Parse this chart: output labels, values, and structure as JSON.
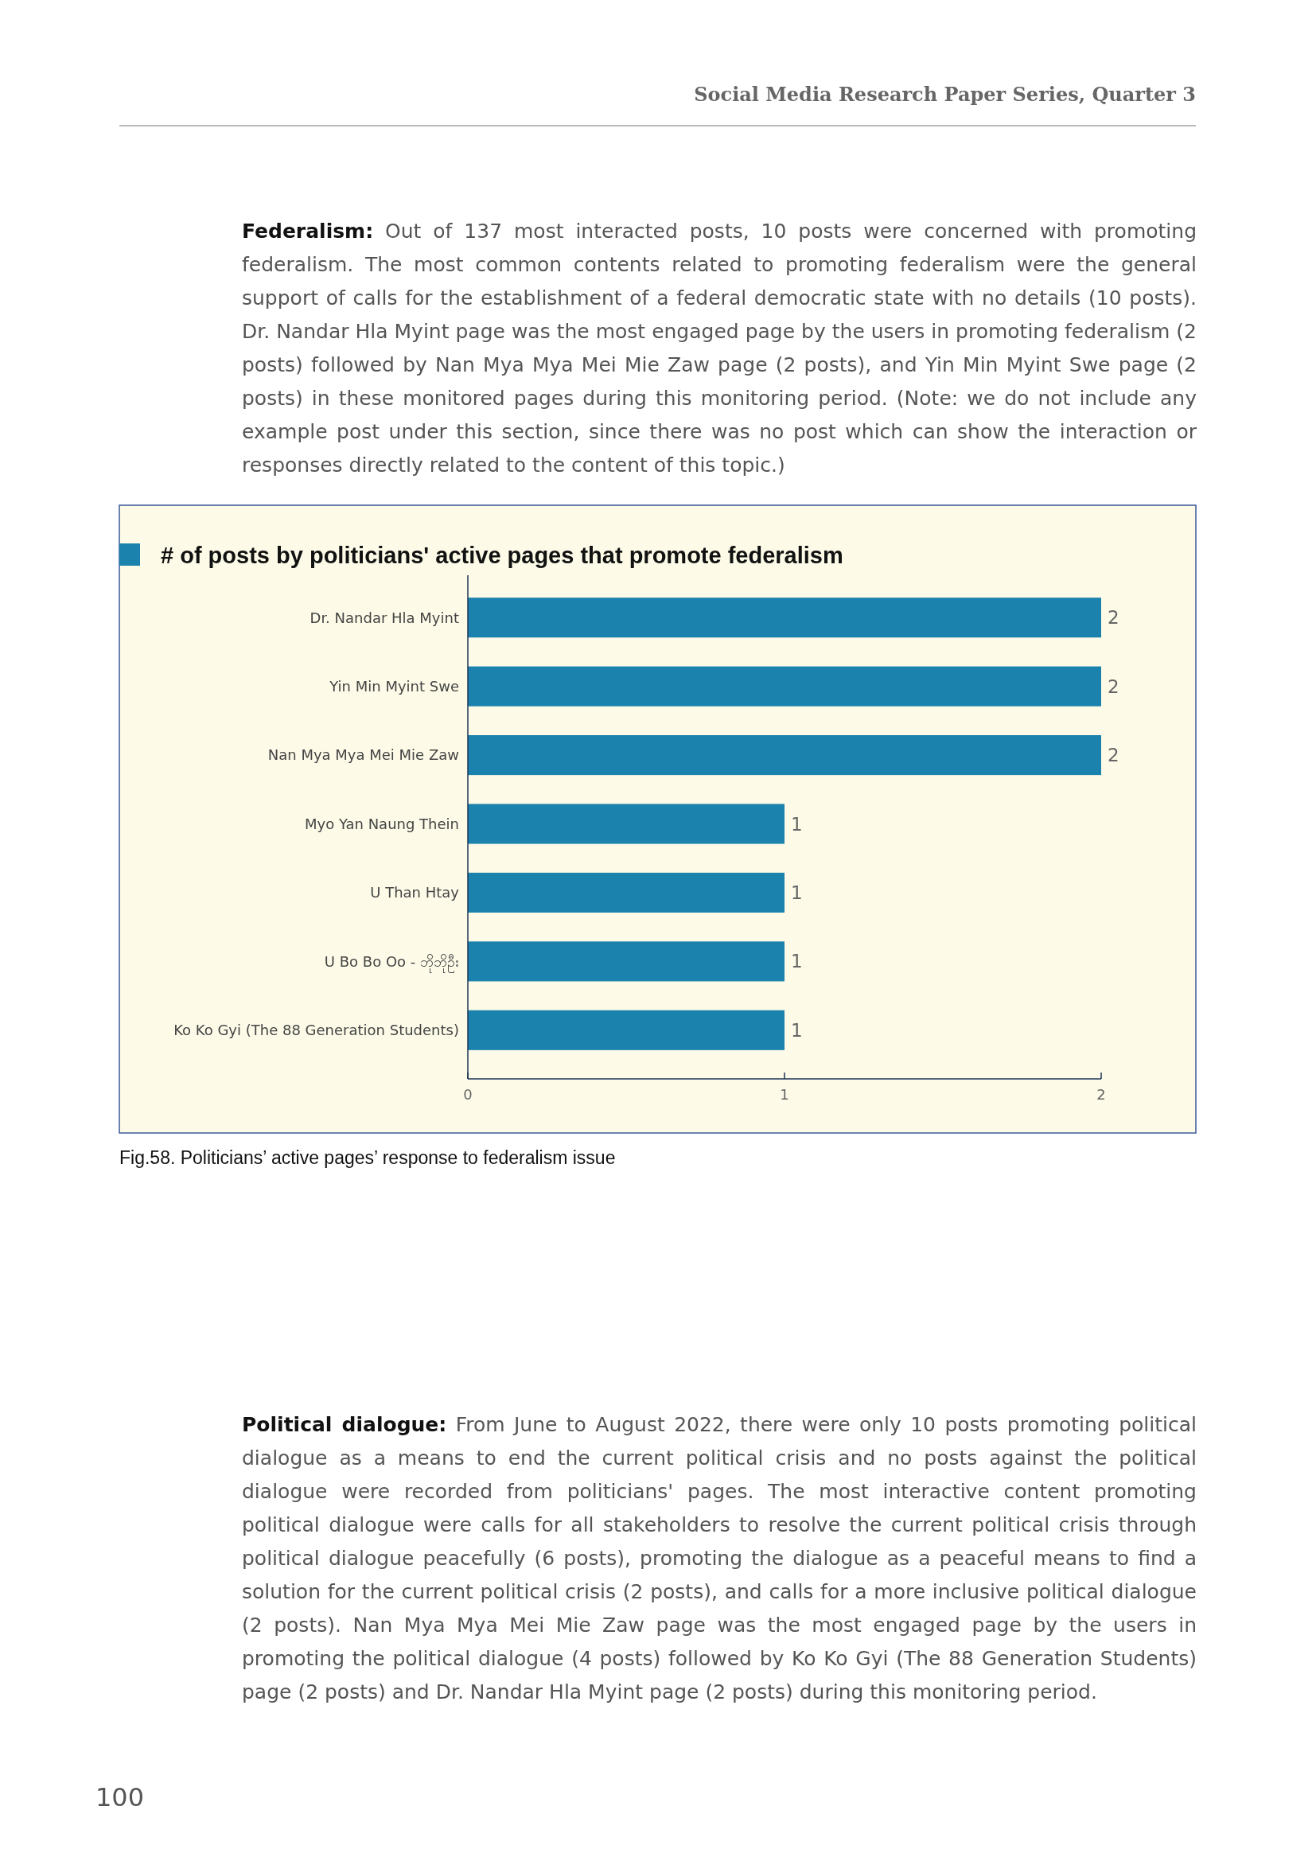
{
  "chart_data": {
    "type": "bar",
    "orientation": "horizontal",
    "title": "# of posts by politicians' active pages that promote federalism",
    "categories": [
      "Dr. Nandar Hla Myint",
      "Yin Min Myint Swe",
      "Nan Mya Mya Mei Mie Zaw",
      "Myo Yan Naung Thein",
      "U Than Htay",
      "U Bo Bo Oo - ဘိုဘိုဦး",
      "Ko Ko Gyi (The 88 Generation Students)"
    ],
    "values": [
      2,
      2,
      2,
      1,
      1,
      1,
      1
    ],
    "color": "#1b82ae",
    "xlim": [
      0,
      2
    ],
    "xticks": [
      0,
      1,
      2
    ],
    "grid": false,
    "data_labels": true,
    "annotations": [
      "Social Media Research Paper Series, Quarter 3",
      "Federalism: Out of 137 most interacted posts, 10 posts were concerned with promoting federalism. The most common contents related to promoting federalism were the general support of calls for the establishment of a federal democratic state with no details (10 posts). Dr. Nandar Hla Myint page was the most engaged page by the users in promoting federalism (2 posts) followed by Nan Mya Mya Mei Mie Zaw page (2 posts), and Yin Min Myint Swe page (2 posts) in these monitored pages during this monitoring period. (Note: we do not include any example post under this section, since there was no post which can show the interaction or responses directly related to the content of this topic.)",
      "Fig.58. Politicians’ active pages’ response to federalism issue",
      "Political dialogue: From June to August 2022, there were only 10 posts promoting political dialogue as a means to end the current political crisis and no posts against the political dialogue were recorded from politicians' pages. The most interactive content promoting political dialogue were calls for all stakeholders to resolve the current political crisis through political dialogue peacefully (6 posts), promoting the dialogue as a peaceful means to find a solution for the current political crisis (2 posts), and calls for a more inclusive political dialogue (2 posts). Nan Mya Mya Mei Mie Zaw page was the most engaged page by the users in promoting the political dialogue (4 posts) followed by Ko Ko Gyi (The 88 Generation Students) page (2 posts) and Dr. Nandar Hla Myint page (2 posts) during this monitoring period.",
      "100"
    ]
  }
}
